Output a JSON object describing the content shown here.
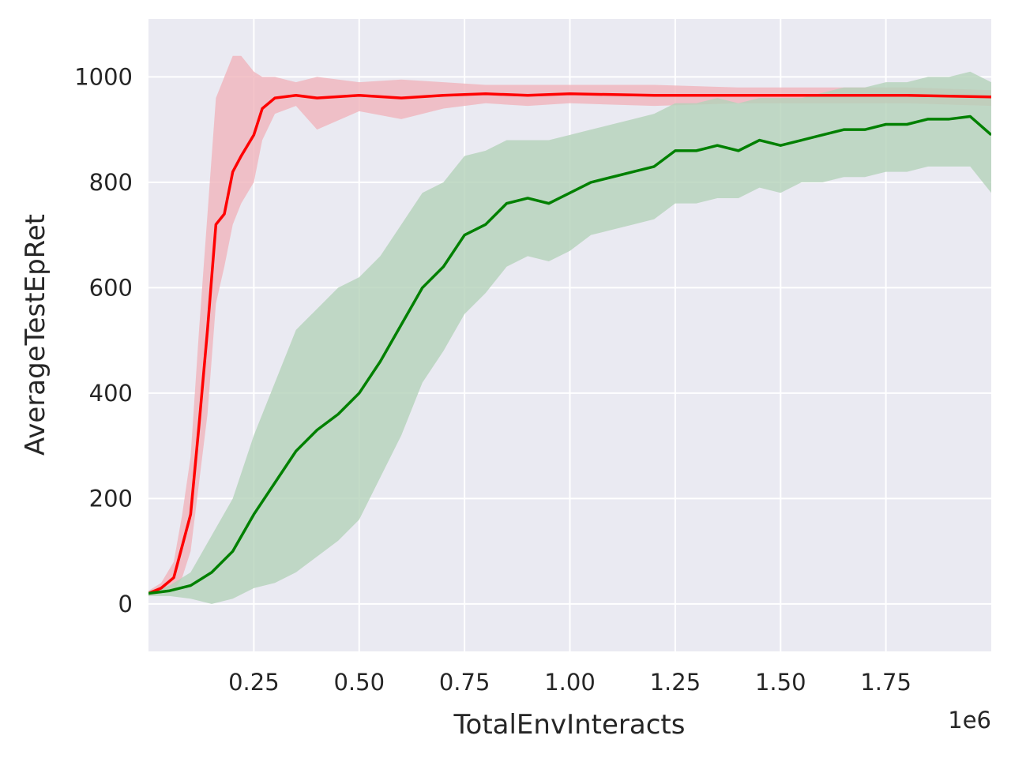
{
  "chart_data": {
    "type": "line",
    "xlabel": "TotalEnvInteracts",
    "ylabel": "AverageTestEpRet",
    "x_offset_label": "1e6",
    "xlim": [
      0.0,
      2.0
    ],
    "ylim": [
      -90,
      1110
    ],
    "x_ticks": [
      0.25,
      0.5,
      0.75,
      1.0,
      1.25,
      1.5,
      1.75
    ],
    "x_tick_labels": [
      "0.25",
      "0.50",
      "0.75",
      "1.00",
      "1.25",
      "1.50",
      "1.75"
    ],
    "y_ticks": [
      0,
      200,
      400,
      600,
      800,
      1000
    ],
    "y_tick_labels": [
      "0",
      "200",
      "400",
      "600",
      "800",
      "1000"
    ],
    "grid": true,
    "background": "#eaeaf2",
    "legend": "none",
    "series": [
      {
        "color": "#ff0000",
        "band_color": "#f0b4bb",
        "x": [
          0.0,
          0.03,
          0.06,
          0.08,
          0.1,
          0.12,
          0.14,
          0.16,
          0.18,
          0.2,
          0.22,
          0.25,
          0.27,
          0.3,
          0.35,
          0.4,
          0.5,
          0.6,
          0.7,
          0.8,
          0.9,
          1.0,
          1.2,
          1.4,
          1.6,
          1.8,
          2.0
        ],
        "y": [
          20,
          30,
          50,
          110,
          170,
          340,
          520,
          720,
          740,
          820,
          850,
          890,
          940,
          960,
          965,
          960,
          965,
          960,
          965,
          968,
          965,
          968,
          965,
          965,
          965,
          965,
          962
        ],
        "lower": [
          15,
          20,
          25,
          50,
          100,
          230,
          360,
          570,
          640,
          720,
          760,
          800,
          880,
          930,
          945,
          900,
          935,
          920,
          940,
          950,
          945,
          950,
          945,
          950,
          950,
          950,
          945
        ],
        "upper": [
          25,
          40,
          80,
          170,
          280,
          520,
          740,
          960,
          1000,
          1040,
          1040,
          1010,
          1000,
          1000,
          990,
          1000,
          990,
          995,
          990,
          985,
          985,
          985,
          985,
          980,
          980,
          980,
          975
        ]
      },
      {
        "color": "#008000",
        "band_color": "#b4d2b9",
        "x": [
          0.0,
          0.05,
          0.1,
          0.15,
          0.2,
          0.25,
          0.3,
          0.35,
          0.4,
          0.45,
          0.5,
          0.55,
          0.6,
          0.65,
          0.7,
          0.75,
          0.8,
          0.85,
          0.9,
          0.95,
          1.0,
          1.05,
          1.1,
          1.15,
          1.2,
          1.25,
          1.3,
          1.35,
          1.4,
          1.45,
          1.5,
          1.55,
          1.6,
          1.65,
          1.7,
          1.75,
          1.8,
          1.85,
          1.9,
          1.95,
          2.0
        ],
        "y": [
          20,
          25,
          35,
          60,
          100,
          170,
          230,
          290,
          330,
          360,
          400,
          460,
          530,
          600,
          640,
          700,
          720,
          760,
          770,
          760,
          780,
          800,
          810,
          820,
          830,
          860,
          860,
          870,
          860,
          880,
          870,
          880,
          890,
          900,
          900,
          910,
          910,
          920,
          920,
          925,
          890
        ],
        "lower": [
          15,
          15,
          10,
          0,
          10,
          30,
          40,
          60,
          90,
          120,
          160,
          240,
          320,
          420,
          480,
          550,
          590,
          640,
          660,
          650,
          670,
          700,
          710,
          720,
          730,
          760,
          760,
          770,
          770,
          790,
          780,
          800,
          800,
          810,
          810,
          820,
          820,
          830,
          830,
          830,
          780
        ],
        "upper": [
          25,
          35,
          60,
          130,
          200,
          320,
          420,
          520,
          560,
          600,
          620,
          660,
          720,
          780,
          800,
          850,
          860,
          880,
          880,
          880,
          890,
          900,
          910,
          920,
          930,
          950,
          950,
          960,
          950,
          960,
          960,
          960,
          970,
          980,
          980,
          990,
          990,
          1000,
          1000,
          1010,
          990
        ]
      }
    ]
  }
}
